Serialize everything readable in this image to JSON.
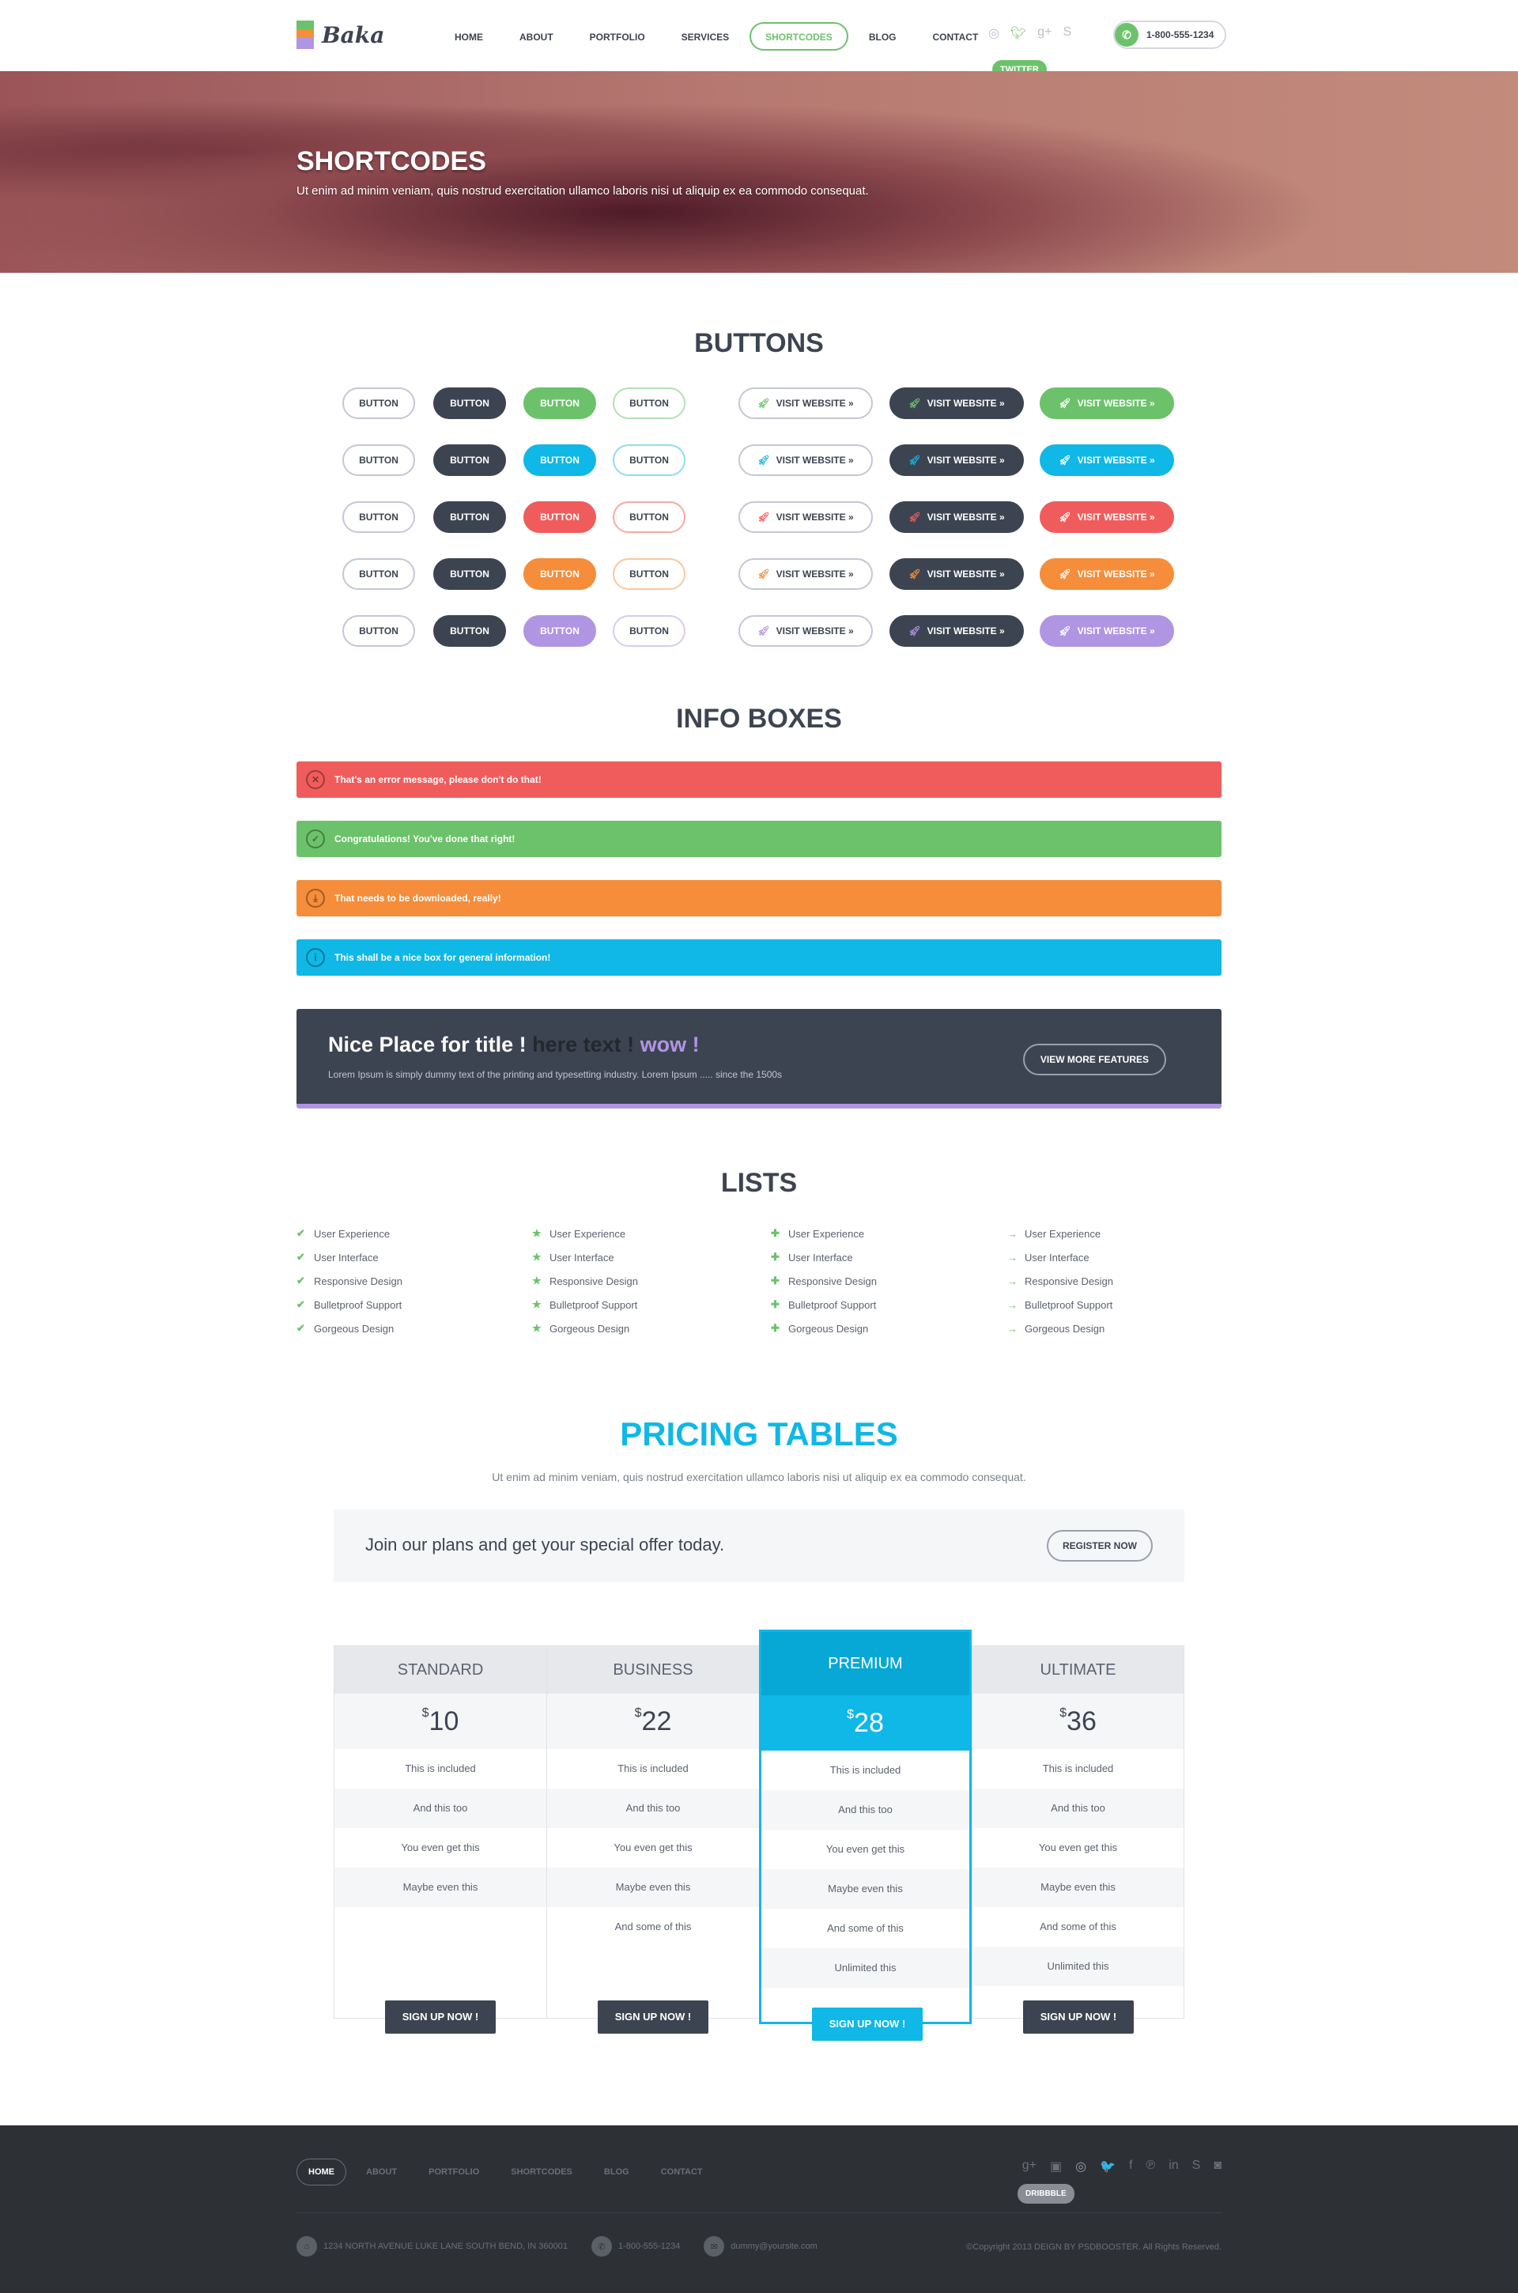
{
  "header": {
    "logo": "Baka",
    "nav": [
      "HOME",
      "ABOUT",
      "PORTFOLIO",
      "SERVICES",
      "SHORTCODES",
      "BLOG",
      "CONTACT"
    ],
    "active_nav": "SHORTCODES",
    "social": [
      "dribbble-icon",
      "twitter-icon",
      "google-plus-icon",
      "skype-icon"
    ],
    "tooltip": "TWITTER",
    "phone": "1-800-555-1234"
  },
  "hero": {
    "title": "SHORTCODES",
    "subtitle": "Ut enim ad minim veniam, quis nostrud exercitation ullamco laboris nisi ut aliquip ex ea commodo consequat."
  },
  "buttons": {
    "title": "BUTTONS",
    "label": "BUTTON",
    "visit_label": "VISIT WEBSITE »",
    "colors": [
      "#6cc26b",
      "#0fb8e6",
      "#f05c5c",
      "#f58d3a",
      "#b095e3"
    ],
    "light_borders": [
      "#b5e0b4",
      "#8fdcf2",
      "#f7a9a9",
      "#fac89c",
      "#d8caf2"
    ]
  },
  "info_boxes": {
    "title": "INFO BOXES",
    "items": [
      {
        "text": "That's an error message, please don't do that!",
        "color": "#f05c5c",
        "icon": "✕"
      },
      {
        "text": "Congratulations! You've done that right!",
        "color": "#6cc26b",
        "icon": "✓"
      },
      {
        "text": "That needs to be downloaded, really!",
        "color": "#f58d3a",
        "icon": "⤓"
      },
      {
        "text": "This shall be a nice box for general information!",
        "color": "#0fb8e6",
        "icon": "i"
      }
    ]
  },
  "promo": {
    "title_a": "Nice Place for title ! ",
    "title_b": "here text ! ",
    "title_c": "wow !",
    "text": "Lorem Ipsum is simply dummy text of the printing and typesetting industry. Lorem Ipsum ..... since the 1500s",
    "button": "VIEW MORE FEATURES"
  },
  "lists": {
    "title": "LISTS",
    "items": [
      "User Experience",
      "User Interface",
      "Responsive Design",
      "Bulletproof Support",
      "Gorgeous Design"
    ],
    "bullets": [
      "✔",
      "★",
      "✚",
      "→"
    ]
  },
  "pricing": {
    "title": "PRICING TABLES",
    "subtitle": "Ut enim ad minim veniam, quis nostrud exercitation ullamco laboris nisi ut aliquip ex ea commodo consequat.",
    "offer": "Join our plans and get your special offer today.",
    "register": "REGISTER NOW",
    "currency": "$",
    "signup": "SIGN UP NOW !",
    "plans": [
      {
        "name": "STANDARD",
        "price": "10",
        "features": [
          "This is included",
          "And this too",
          "You even get this",
          "Maybe even this"
        ]
      },
      {
        "name": "BUSINESS",
        "price": "22",
        "features": [
          "This is included",
          "And this too",
          "You even get this",
          "Maybe even this",
          "And some of this"
        ]
      },
      {
        "name": "PREMIUM",
        "price": "28",
        "featured": true,
        "features": [
          "This is included",
          "And this too",
          "You even get this",
          "Maybe even this",
          "And some of this",
          "Unlimited this"
        ]
      },
      {
        "name": "ULTIMATE",
        "price": "36",
        "features": [
          "This is included",
          "And this too",
          "You even get this",
          "Maybe even this",
          "And some of this",
          "Unlimited this"
        ]
      }
    ]
  },
  "footer": {
    "nav": [
      "HOME",
      "ABOUT",
      "PORTFOLIO",
      "SHORTCODES",
      "BLOG",
      "CONTACT"
    ],
    "social": [
      "g+",
      "▣",
      "◎",
      "🐦",
      "f",
      "℗",
      "in",
      "S",
      "◙"
    ],
    "social_names": [
      "google-plus-icon",
      "youtube-icon",
      "dribbble-icon",
      "twitter-icon",
      "facebook-icon",
      "pinterest-icon",
      "linkedin-icon",
      "skype-icon",
      "instagram-icon"
    ],
    "tooltip": "DRIBBBLE",
    "address": "1234 NORTH AVENUE LUKE LANE SOUTH BEND, IN 360001",
    "phone": "1-800-555-1234",
    "email": "dummy@yoursite.com",
    "copyright": "©Copyright 2013 DEIGN BY PSDBOOSTER. All Rights Reserved."
  }
}
